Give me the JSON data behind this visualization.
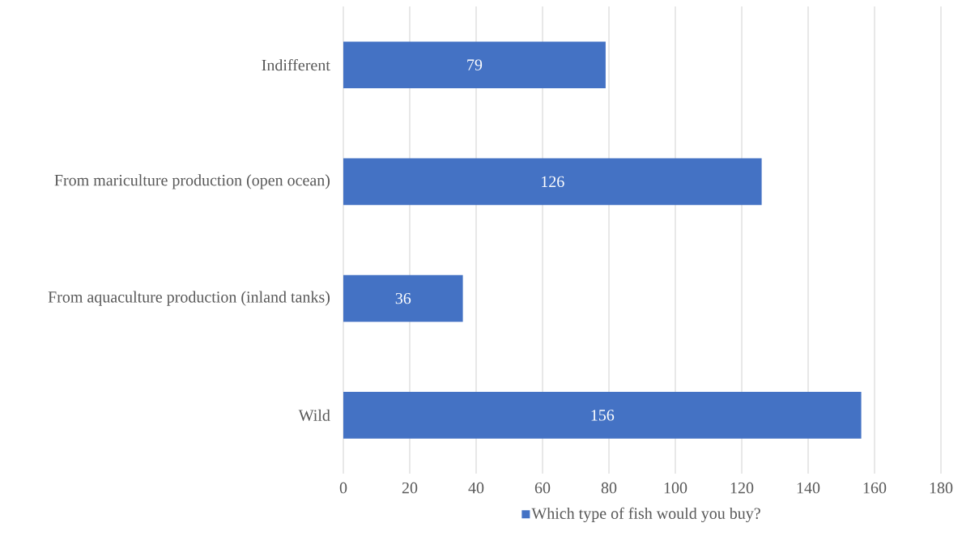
{
  "chart_data": {
    "type": "bar",
    "orientation": "horizontal",
    "categories": [
      "Indifferent",
      "From mariculture  production (open ocean)",
      "From aquaculture  production (inland tanks)",
      "Wild"
    ],
    "series": [
      {
        "name": "Which type of fish would you buy?",
        "color": "#4472c4",
        "values": [
          79,
          126,
          36,
          156
        ]
      }
    ],
    "xlim": [
      0,
      180
    ],
    "xticks": [
      0,
      20,
      40,
      60,
      80,
      100,
      120,
      140,
      160,
      180
    ],
    "grid": "x",
    "legend": "bottom",
    "data_labels": true
  }
}
